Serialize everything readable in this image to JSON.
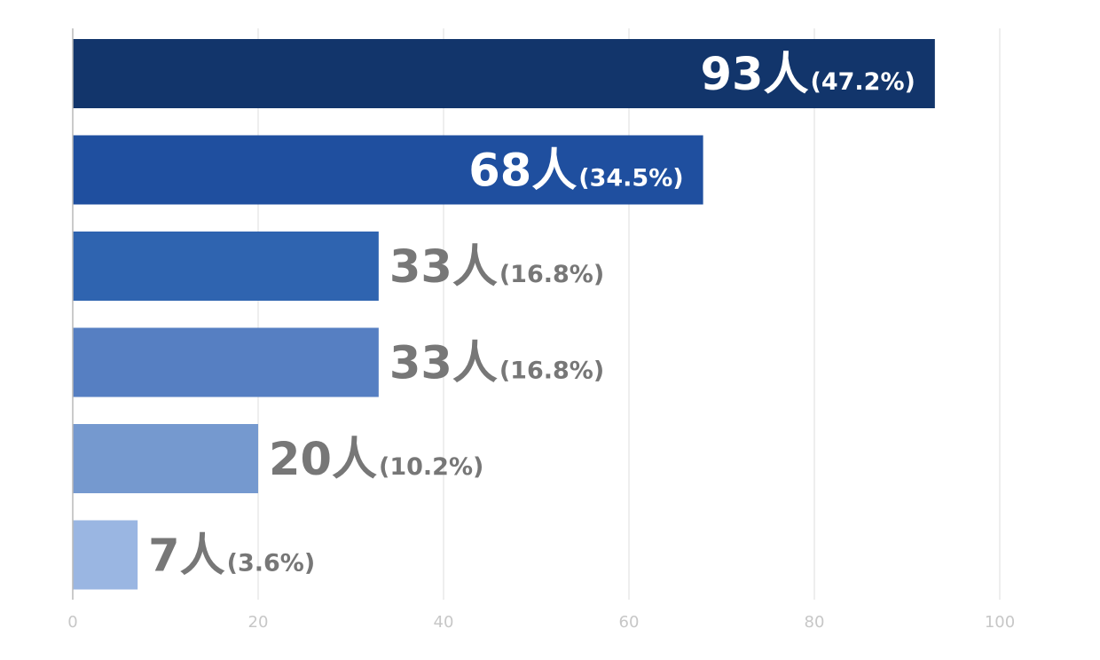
{
  "chart_data": {
    "type": "bar",
    "orientation": "horizontal",
    "title": "",
    "xlabel": "",
    "ylabel": "",
    "xlim": [
      0,
      100
    ],
    "x_ticks": [
      "0",
      "20",
      "40",
      "60",
      "80",
      "100"
    ],
    "grid": true,
    "legend": "none",
    "categories": [
      "",
      "",
      "",
      "",
      "",
      ""
    ],
    "values": [
      93,
      68,
      33,
      33,
      20,
      7
    ],
    "data_labels": [
      {
        "value_text": "93",
        "unit": "人",
        "percent_text": "(47.2%)"
      },
      {
        "value_text": "68",
        "unit": "人",
        "percent_text": "(34.5%)"
      },
      {
        "value_text": "33",
        "unit": "人",
        "percent_text": "(16.8%)"
      },
      {
        "value_text": "33",
        "unit": "人",
        "percent_text": "(16.8%)"
      },
      {
        "value_text": "20",
        "unit": "人",
        "percent_text": "(10.2%)"
      },
      {
        "value_text": "7",
        "unit": "人",
        "percent_text": "(3.6%)"
      }
    ],
    "bar_colors": [
      "#12356b",
      "#1f4f9f",
      "#2f64b0",
      "#567fc2",
      "#7599cf",
      "#9ab6e2"
    ],
    "label_inside_color": "#ffffff",
    "label_outside_color": "#777777",
    "inside_label_bars": [
      0,
      1
    ]
  }
}
